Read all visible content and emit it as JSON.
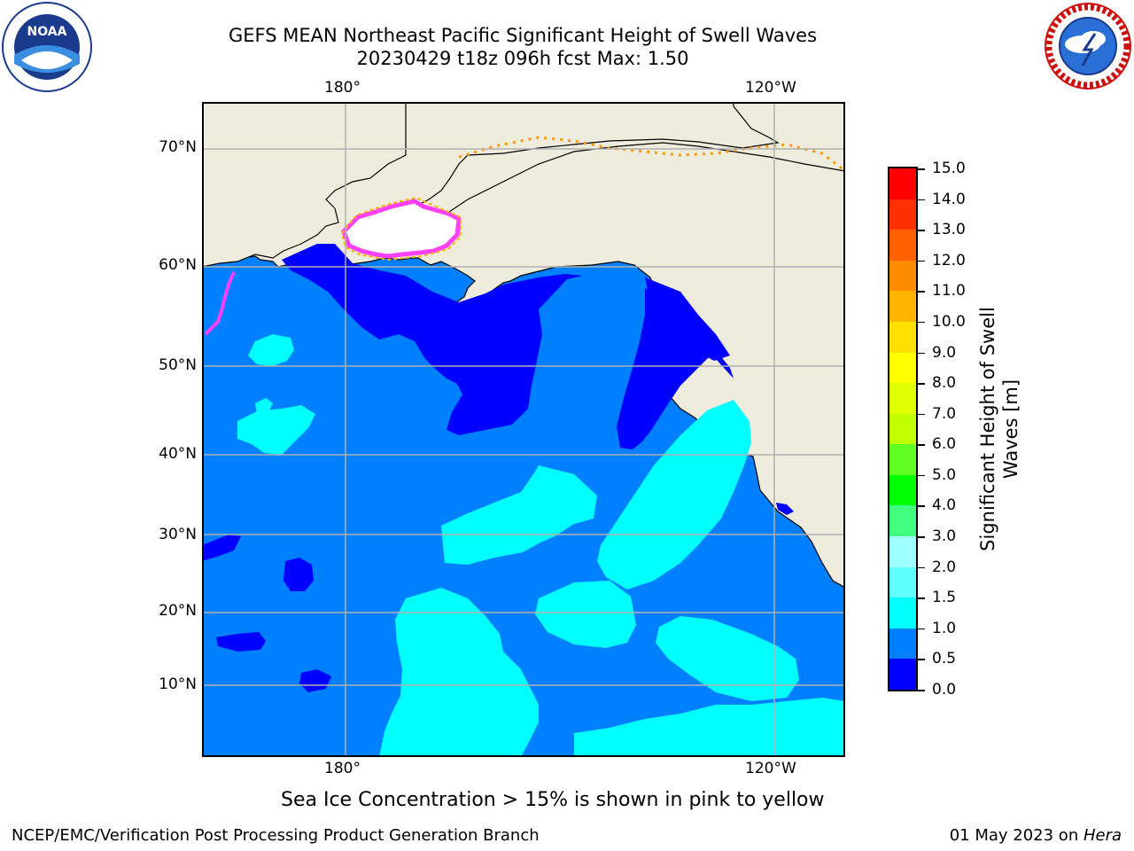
{
  "title": {
    "line1": "GEFS MEAN Northeast Pacific Significant Height of Swell Waves",
    "line2": "20230429 t18z 096h fcst   Max: 1.50"
  },
  "map": {
    "lon_labels": [
      "180°",
      "120°W"
    ],
    "lat_labels": [
      "70°N",
      "60°N",
      "50°N",
      "40°N",
      "30°N",
      "20°N",
      "10°N"
    ],
    "colors": {
      "land": "#eeecdc",
      "ocean": "#0080ff",
      "deep": "#0000ff",
      "cyan": "#00ffff",
      "ice": "#ff40ff"
    }
  },
  "colorbar": {
    "ticks": [
      "15.0",
      "14.0",
      "13.0",
      "12.0",
      "11.0",
      "10.0",
      "9.0",
      "8.0",
      "7.0",
      "6.0",
      "5.0",
      "4.0",
      "3.0",
      "2.0",
      "1.5",
      "1.0",
      "0.5",
      "0.0"
    ],
    "colors": [
      "#ff0000",
      "#ff3000",
      "#ff6000",
      "#ff8c00",
      "#ffb400",
      "#ffe000",
      "#ffff00",
      "#e0ff00",
      "#c0ff00",
      "#60ff20",
      "#00ff00",
      "#40ff80",
      "#a0ffff",
      "#60ffff",
      "#00ffff",
      "#0080ff",
      "#0000ff"
    ],
    "label": "Significant Height of Swell Waves [m]"
  },
  "note": "Sea Ice Concentration > 15% is shown in pink to yellow",
  "footer": {
    "left": "NCEP/EMC/Verification Post Processing Product Generation Branch",
    "date": "01 May 2023 on ",
    "host": "Hera"
  },
  "logos": {
    "noaa": "NOAA",
    "noaa_ring": "NATIONAL OCEANIC AND ATMOSPHERIC ADMINISTRATION · U.S. DEPARTMENT OF COMMERCE",
    "nws_ring": "NATIONAL WEATHER SERVICE"
  }
}
